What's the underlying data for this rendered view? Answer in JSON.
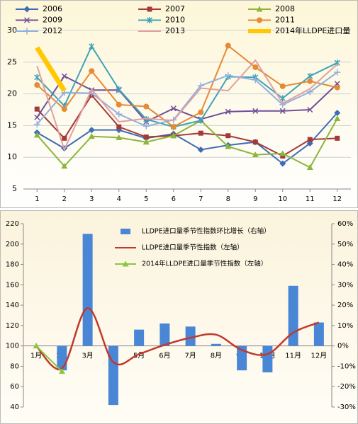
{
  "chart_data": [
    {
      "type": "line",
      "x": [
        1,
        2,
        3,
        4,
        5,
        6,
        7,
        8,
        9,
        10,
        11,
        12
      ],
      "xlim": [
        0.5,
        12.5
      ],
      "xticks": [
        1,
        2,
        3,
        4,
        5,
        6,
        7,
        8,
        9,
        10,
        11,
        12
      ],
      "ylim": [
        5,
        30
      ],
      "yticks": [
        5,
        10,
        15,
        20,
        25,
        30
      ],
      "grid": true,
      "series": [
        {
          "name": "2006",
          "color": "#3e6db5",
          "values": [
            13.9,
            11.4,
            14.3,
            14.3,
            13.0,
            13.7,
            11.2,
            11.9,
            12.4,
            9.0,
            12.2,
            17.0
          ]
        },
        {
          "name": "2007",
          "color": "#a33a3a",
          "values": [
            17.6,
            13.0,
            19.8,
            14.8,
            13.2,
            13.4,
            13.8,
            13.4,
            12.4,
            10.2,
            12.8,
            13.0
          ]
        },
        {
          "name": "2008",
          "color": "#8db53c",
          "values": [
            13.5,
            8.6,
            13.3,
            13.1,
            12.4,
            13.4,
            15.8,
            11.7,
            10.4,
            10.6,
            8.4,
            16.1
          ]
        },
        {
          "name": "2009",
          "color": "#6f4f9a",
          "values": [
            16.3,
            22.8,
            20.6,
            20.6,
            15.6,
            17.7,
            16.0,
            17.2,
            17.3,
            17.3,
            17.5,
            21.6
          ]
        },
        {
          "name": "2010",
          "color": "#3fa3b8",
          "values": [
            22.6,
            18.1,
            27.5,
            20.7,
            16.0,
            14.8,
            15.8,
            22.7,
            22.6,
            19.3,
            22.8,
            24.9
          ]
        },
        {
          "name": "2011",
          "color": "#e58a35",
          "values": [
            21.4,
            17.6,
            23.6,
            18.3,
            18.0,
            14.8,
            17.1,
            27.6,
            24.2,
            21.2,
            22.0,
            21.0
          ]
        },
        {
          "name": "2012",
          "color": "#8fb0e0",
          "values": [
            15.2,
            20.2,
            20.1,
            16.8,
            14.9,
            15.9,
            21.3,
            22.9,
            22.2,
            18.3,
            20.3,
            23.4
          ]
        },
        {
          "name": "2013",
          "color": "#e0a0a0",
          "values": [
            24.4,
            11.2,
            20.7,
            15.6,
            16.1,
            15.8,
            20.9,
            20.5,
            25.3,
            18.5,
            20.8,
            24.7
          ]
        },
        {
          "name": "2014年LLDPE进口量",
          "color": "#ffc800",
          "values": [
            27.3,
            20.5,
            null,
            null,
            null,
            null,
            null,
            null,
            null,
            null,
            null,
            null
          ]
        }
      ]
    },
    {
      "type": "bar",
      "categories": [
        "1月",
        "2月",
        "3月",
        "4月",
        "5月",
        "6月",
        "7月",
        "8月",
        "9月",
        "10月",
        "11月",
        "12月"
      ],
      "ylim": [
        40,
        220
      ],
      "yticks": [
        40,
        60,
        80,
        100,
        120,
        140,
        160,
        180,
        200,
        220
      ],
      "y2lim": [
        -30,
        60
      ],
      "y2ticks": [
        {
          "value": -30,
          "label": "-30%"
        },
        {
          "value": -20,
          "label": "-20%"
        },
        {
          "value": -10,
          "label": "-10%"
        },
        {
          "value": 0,
          "label": "0%"
        },
        {
          "value": 10,
          "label": "10%"
        },
        {
          "value": 20,
          "label": "20%"
        },
        {
          "value": 30,
          "label": "30%"
        },
        {
          "value": 40,
          "label": "40%"
        },
        {
          "value": 50,
          "label": "50%"
        },
        {
          "value": 60,
          "label": "60%"
        }
      ],
      "series": [
        {
          "name": "LLDPE进口量季节性指数环比增长（右轴）",
          "type": "bar",
          "axis": "y2",
          "color": "#4a86d6",
          "values": [
            0,
            -12,
            55,
            -29,
            8,
            11,
            9.5,
            1,
            -12,
            -13,
            29.5,
            11.5
          ]
        },
        {
          "name": "LLDPE进口量季节性指数（左轴）",
          "type": "line",
          "color": "#c0392b",
          "values": [
            100,
            78,
            137,
            84,
            92,
            101,
            108,
            111,
            96,
            92,
            113,
            123
          ]
        },
        {
          "name": "2014年LLDPE进口量季节性指数（左轴）",
          "type": "line",
          "color": "#8cc63f",
          "values": [
            100,
            75,
            null,
            null,
            null,
            null,
            null,
            null,
            null,
            null,
            null,
            null
          ]
        }
      ]
    }
  ]
}
